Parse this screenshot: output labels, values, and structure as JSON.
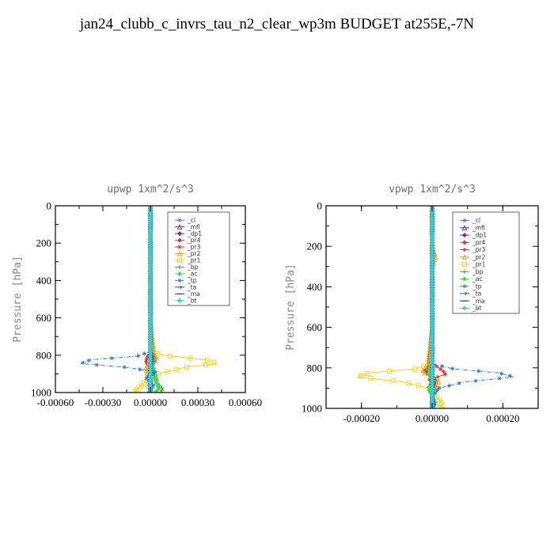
{
  "title": "jan24_clubb_c_invrs_tau_n2_clear_wp3m  BUDGET at255E,-7N",
  "chart_data": [
    {
      "type": "line",
      "title": "upwp   1xm^2/s^3",
      "ylabel": "Pressure [hPa]",
      "xlim": [
        -0.0006,
        0.0006
      ],
      "ylim": [
        1000,
        0
      ],
      "xticks": [
        -0.0006,
        -0.0003,
        0.0,
        0.0003,
        0.0006
      ],
      "xtick_labels": [
        "-0.00060",
        "-0.00030",
        "0.00000",
        "0.00030",
        "0.00060"
      ],
      "yticks": [
        0,
        200,
        400,
        600,
        800,
        1000
      ],
      "ytick_labels": [
        "0",
        "200",
        "400",
        "600",
        "800",
        "1000"
      ],
      "legend_position": "upper-right",
      "series": [
        {
          "name": "_cl",
          "color": "#9b59d0",
          "marker": "star",
          "dash": "",
          "pressure": [
            0,
            200,
            400,
            600,
            780,
            820,
            860,
            900,
            940,
            980,
            1000
          ],
          "values": [
            0,
            0,
            0,
            0,
            0,
            0,
            0,
            0,
            0,
            0,
            0
          ]
        },
        {
          "name": "_mfl",
          "color": "#7a1f8c",
          "marker": "triangle",
          "dash": "",
          "pressure": [
            0,
            200,
            400,
            600,
            780,
            820,
            860,
            900,
            940,
            980,
            1000
          ],
          "values": [
            0,
            0,
            0,
            0,
            0,
            0,
            0,
            0,
            0,
            0,
            0
          ]
        },
        {
          "name": "_dp1",
          "color": "#a0205a",
          "marker": "diamond",
          "dash": "",
          "pressure": [
            0,
            200,
            400,
            600,
            780,
            820,
            860,
            900,
            940,
            980,
            1000
          ],
          "values": [
            0,
            0,
            0,
            0,
            0,
            1e-05,
            0,
            0,
            0,
            0,
            0
          ]
        },
        {
          "name": "_pr4",
          "color": "#c83c5a",
          "marker": "diamond",
          "dash": "",
          "pressure": [
            0,
            200,
            400,
            600,
            780,
            820,
            860,
            900,
            940,
            980,
            1000
          ],
          "values": [
            0,
            0,
            0,
            0,
            1e-05,
            3e-05,
            1e-05,
            0,
            0,
            0,
            0
          ]
        },
        {
          "name": "_pr3",
          "color": "#e8302a",
          "marker": "star",
          "dash": "",
          "pressure": [
            0,
            200,
            400,
            600,
            780,
            810,
            840,
            870,
            900,
            940,
            980,
            1000
          ],
          "values": [
            0,
            0,
            0,
            0,
            0,
            -2e-05,
            -3e-05,
            2e-05,
            1e-05,
            0,
            0,
            0
          ]
        },
        {
          "name": "_pr2",
          "color": "#f29a1a",
          "marker": "triangle",
          "dash": "",
          "pressure": [
            0,
            200,
            400,
            600,
            780,
            820,
            860,
            900,
            940,
            980,
            1000
          ],
          "values": [
            0,
            0,
            0,
            0,
            2e-05,
            4e-05,
            -3e-05,
            -2e-05,
            -1e-05,
            0,
            0
          ]
        },
        {
          "name": "_pr1",
          "color": "#f3d21a",
          "marker": "square",
          "dash": "",
          "pressure": [
            0,
            200,
            400,
            600,
            780,
            800,
            825,
            845,
            865,
            900,
            940,
            980,
            1000
          ],
          "values": [
            0,
            0,
            0,
            0,
            0,
            8e-05,
            0.00035,
            0.00042,
            0.00022,
            5e-05,
            -3e-05,
            -8e-05,
            -0.0001
          ]
        },
        {
          "name": "_bp",
          "color": "#3aa832",
          "marker": "plus",
          "dash": "",
          "pressure": [
            0,
            200,
            400,
            600,
            780,
            820,
            860,
            900,
            940,
            980,
            1000
          ],
          "values": [
            0,
            0,
            0,
            0,
            0,
            1e-05,
            -1e-05,
            2e-05,
            3e-05,
            8e-05,
            6e-05
          ]
        },
        {
          "name": "_ac",
          "color": "#48d848",
          "marker": "diamond",
          "dash": "",
          "pressure": [
            0,
            200,
            400,
            600,
            780,
            820,
            860,
            900,
            940,
            980,
            1000
          ],
          "values": [
            0,
            0,
            0,
            0,
            0,
            2e-05,
            1e-05,
            3e-05,
            4e-05,
            5e-05,
            3e-05
          ]
        },
        {
          "name": "_tp",
          "color": "#2a7fc9",
          "marker": "star",
          "dash": "5,2,1,2",
          "pressure": [
            0,
            200,
            400,
            600,
            780,
            805,
            825,
            845,
            865,
            890,
            920,
            960,
            1000
          ],
          "values": [
            0,
            0,
            0,
            0,
            0,
            -8e-05,
            -0.00038,
            -0.00044,
            -0.00015,
            4e-05,
            -3e-05,
            2e-05,
            -1e-05
          ]
        },
        {
          "name": "_ta",
          "color": "#2c4fbf",
          "marker": "arrow",
          "dash": "",
          "pressure": [
            0,
            200,
            400,
            600,
            780,
            820,
            860,
            900,
            940,
            980,
            1000
          ],
          "values": [
            0,
            0,
            0,
            0,
            0,
            1e-05,
            0,
            0,
            0,
            0,
            0
          ]
        },
        {
          "name": "_ma",
          "color": "#1a3a8c",
          "marker": "dash",
          "dash": "",
          "pressure": [
            0,
            200,
            400,
            600,
            780,
            820,
            860,
            900,
            940,
            980,
            1000
          ],
          "values": [
            0,
            0,
            0,
            0,
            0,
            0,
            0,
            0,
            0,
            0,
            0
          ]
        },
        {
          "name": "_bt",
          "color": "#2fd0e0",
          "marker": "diamond",
          "dash": "",
          "pressure": [
            0,
            200,
            400,
            600,
            780,
            820,
            860,
            900,
            940,
            980,
            1000
          ],
          "values": [
            0,
            0,
            0,
            0,
            0,
            0,
            0,
            0,
            0,
            0,
            0
          ]
        }
      ]
    },
    {
      "type": "line",
      "title": "vpwp   1xm^2/s^3",
      "ylabel": "Pressure [hPa]",
      "xlim": [
        -0.0003,
        0.0003
      ],
      "ylim": [
        1000,
        0
      ],
      "xticks": [
        -0.0002,
        0.0,
        0.0002
      ],
      "xtick_labels": [
        "-0.00020",
        "0.00000",
        "0.00020"
      ],
      "yticks": [
        0,
        200,
        400,
        600,
        800,
        1000
      ],
      "ytick_labels": [
        "0",
        "200",
        "400",
        "600",
        "800",
        "1000"
      ],
      "legend_position": "upper-right",
      "series": [
        {
          "name": "_cl",
          "color": "#9b59d0",
          "marker": "star",
          "dash": "",
          "pressure": [
            0,
            200,
            400,
            600,
            780,
            820,
            860,
            900,
            940,
            980,
            1000
          ],
          "values": [
            0,
            0,
            0,
            0,
            0,
            0,
            0,
            0,
            0,
            0,
            0
          ]
        },
        {
          "name": "_mfl",
          "color": "#7a1f8c",
          "marker": "triangle",
          "dash": "",
          "pressure": [
            0,
            200,
            400,
            600,
            780,
            820,
            860,
            900,
            940,
            980,
            1000
          ],
          "values": [
            0,
            0,
            0,
            0,
            0,
            0,
            0,
            0,
            0,
            0,
            0
          ]
        },
        {
          "name": "_dp1",
          "color": "#a0205a",
          "marker": "diamond",
          "dash": "",
          "pressure": [
            0,
            200,
            400,
            600,
            780,
            820,
            860,
            900,
            940,
            980,
            1000
          ],
          "values": [
            0,
            0,
            0,
            0,
            0,
            -1e-05,
            0,
            0,
            0,
            0,
            0
          ]
        },
        {
          "name": "_pr4",
          "color": "#c83c5a",
          "marker": "diamond",
          "dash": "",
          "pressure": [
            0,
            200,
            400,
            600,
            780,
            820,
            860,
            900,
            940,
            980,
            1000
          ],
          "values": [
            0,
            0,
            0,
            0,
            -1e-05,
            -2e-05,
            1e-05,
            0,
            0,
            0,
            0
          ]
        },
        {
          "name": "_pr3",
          "color": "#e8302a",
          "marker": "star",
          "dash": "",
          "pressure": [
            0,
            200,
            400,
            600,
            780,
            800,
            830,
            860,
            890,
            930,
            970,
            1000
          ],
          "values": [
            0,
            0,
            0,
            0,
            0,
            2e-05,
            4e-05,
            -1e-05,
            1e-05,
            0,
            0,
            0
          ]
        },
        {
          "name": "_pr2",
          "color": "#f29a1a",
          "marker": "triangle",
          "dash": "",
          "pressure": [
            0,
            200,
            250,
            300,
            400,
            600,
            780,
            820,
            860,
            900,
            940,
            980,
            1000
          ],
          "values": [
            0,
            0,
            1e-05,
            0,
            0,
            0,
            -1e-05,
            -3e-05,
            2e-05,
            1e-05,
            0,
            0,
            0
          ]
        },
        {
          "name": "_pr1",
          "color": "#f3d21a",
          "marker": "square",
          "dash": "",
          "pressure": [
            0,
            200,
            400,
            600,
            780,
            805,
            825,
            845,
            870,
            900,
            940,
            980,
            1000
          ],
          "values": [
            0,
            0,
            0,
            0,
            0,
            -5e-05,
            -0.00018,
            -0.00021,
            -8e-05,
            -1e-05,
            1e-05,
            3e-05,
            2e-05
          ]
        },
        {
          "name": "_bp",
          "color": "#3aa832",
          "marker": "plus",
          "dash": "",
          "pressure": [
            0,
            200,
            400,
            600,
            780,
            820,
            860,
            900,
            940,
            980,
            1000
          ],
          "values": [
            0,
            0,
            0,
            0,
            0,
            -1e-05,
            1e-05,
            -1e-05,
            0,
            0,
            0
          ]
        },
        {
          "name": "_ac",
          "color": "#48d848",
          "marker": "diamond",
          "dash": "",
          "pressure": [
            0,
            200,
            400,
            600,
            780,
            820,
            860,
            900,
            940,
            980,
            1000
          ],
          "values": [
            0,
            0,
            0,
            0,
            0,
            -1e-05,
            0,
            -1e-05,
            0,
            0,
            0
          ]
        },
        {
          "name": "_tp",
          "color": "#2a7fc9",
          "marker": "star",
          "dash": "5,2,1,2",
          "pressure": [
            0,
            200,
            400,
            600,
            780,
            805,
            825,
            845,
            870,
            900,
            940,
            980,
            1000
          ],
          "values": [
            0,
            0,
            0,
            0,
            0,
            6e-05,
            0.00019,
            0.00023,
            9e-05,
            2e-05,
            0,
            1e-05,
            0
          ]
        },
        {
          "name": "_ta",
          "color": "#2c4fbf",
          "marker": "arrow",
          "dash": "",
          "pressure": [
            0,
            200,
            400,
            600,
            780,
            820,
            860,
            900,
            940,
            980,
            1000
          ],
          "values": [
            0,
            0,
            0,
            0,
            0,
            0,
            0,
            0,
            0,
            0,
            0
          ]
        },
        {
          "name": "_ma",
          "color": "#1a3a8c",
          "marker": "dash",
          "dash": "",
          "pressure": [
            0,
            200,
            400,
            600,
            780,
            820,
            860,
            900,
            940,
            980,
            1000
          ],
          "values": [
            0,
            0,
            0,
            0,
            0,
            0,
            0,
            0,
            0,
            0,
            0
          ]
        },
        {
          "name": "_bt",
          "color": "#2fd0e0",
          "marker": "diamond",
          "dash": "",
          "pressure": [
            0,
            200,
            400,
            600,
            780,
            820,
            860,
            900,
            940,
            980,
            1000
          ],
          "values": [
            0,
            0,
            0,
            0,
            0,
            0,
            0,
            0,
            0,
            0,
            0
          ]
        }
      ]
    }
  ]
}
